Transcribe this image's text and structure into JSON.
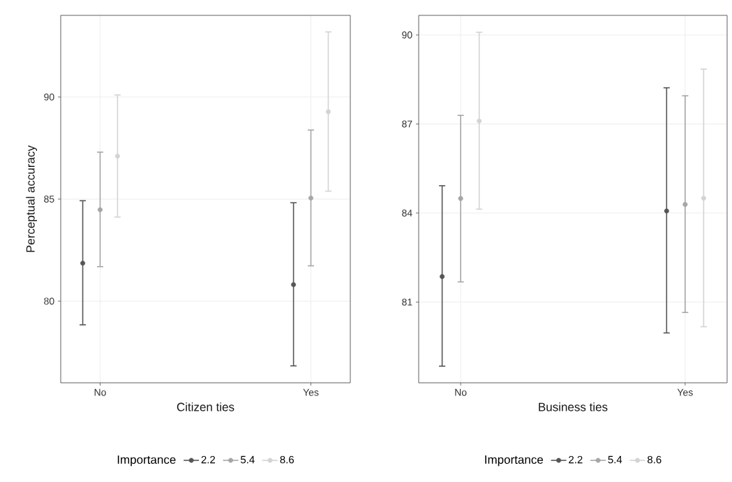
{
  "chart_data": [
    {
      "type": "scatter",
      "xlabel": "Citizen ties",
      "ylabel": "Perceptual accuracy",
      "categories": [
        "No",
        "Yes"
      ],
      "ylim": [
        76.0,
        94.0
      ],
      "yticks": [
        80,
        85,
        90
      ],
      "grid": true,
      "legend": "bottom",
      "legend_title": "Importance",
      "marker": "circle",
      "series": [
        {
          "name": "2.2",
          "color": "#555555",
          "values": [
            81.86,
            80.81
          ],
          "errors": [
            [
              78.84,
              84.92
            ],
            [
              76.83,
              84.82
            ]
          ]
        },
        {
          "name": "5.4",
          "color": "#a6a6a6",
          "values": [
            84.48,
            85.05
          ],
          "errors": [
            [
              81.69,
              87.3
            ],
            [
              81.73,
              88.38
            ]
          ]
        },
        {
          "name": "8.6",
          "color": "#d3d3d3",
          "values": [
            87.1,
            89.28
          ],
          "errors": [
            [
              84.12,
              90.1
            ],
            [
              85.39,
              93.19
            ]
          ]
        }
      ]
    },
    {
      "type": "scatter",
      "xlabel": "Business ties",
      "categories": [
        "No",
        "Yes"
      ],
      "ylim": [
        78.28,
        90.66
      ],
      "yticks": [
        81,
        84,
        87,
        90
      ],
      "grid": true,
      "legend": "bottom",
      "legend_title": "Importance",
      "marker": "circle",
      "series": [
        {
          "name": "2.2",
          "color": "#555555",
          "values": [
            81.86,
            84.07
          ],
          "errors": [
            [
              78.84,
              84.92
            ],
            [
              79.96,
              88.22
            ]
          ]
        },
        {
          "name": "5.4",
          "color": "#a6a6a6",
          "values": [
            84.49,
            84.29
          ],
          "errors": [
            [
              81.68,
              87.29
            ],
            [
              80.65,
              87.95
            ]
          ]
        },
        {
          "name": "8.6",
          "color": "#d3d3d3",
          "values": [
            87.1,
            84.5
          ],
          "errors": [
            [
              84.13,
              90.09
            ],
            [
              80.17,
              88.85
            ]
          ]
        }
      ]
    }
  ]
}
